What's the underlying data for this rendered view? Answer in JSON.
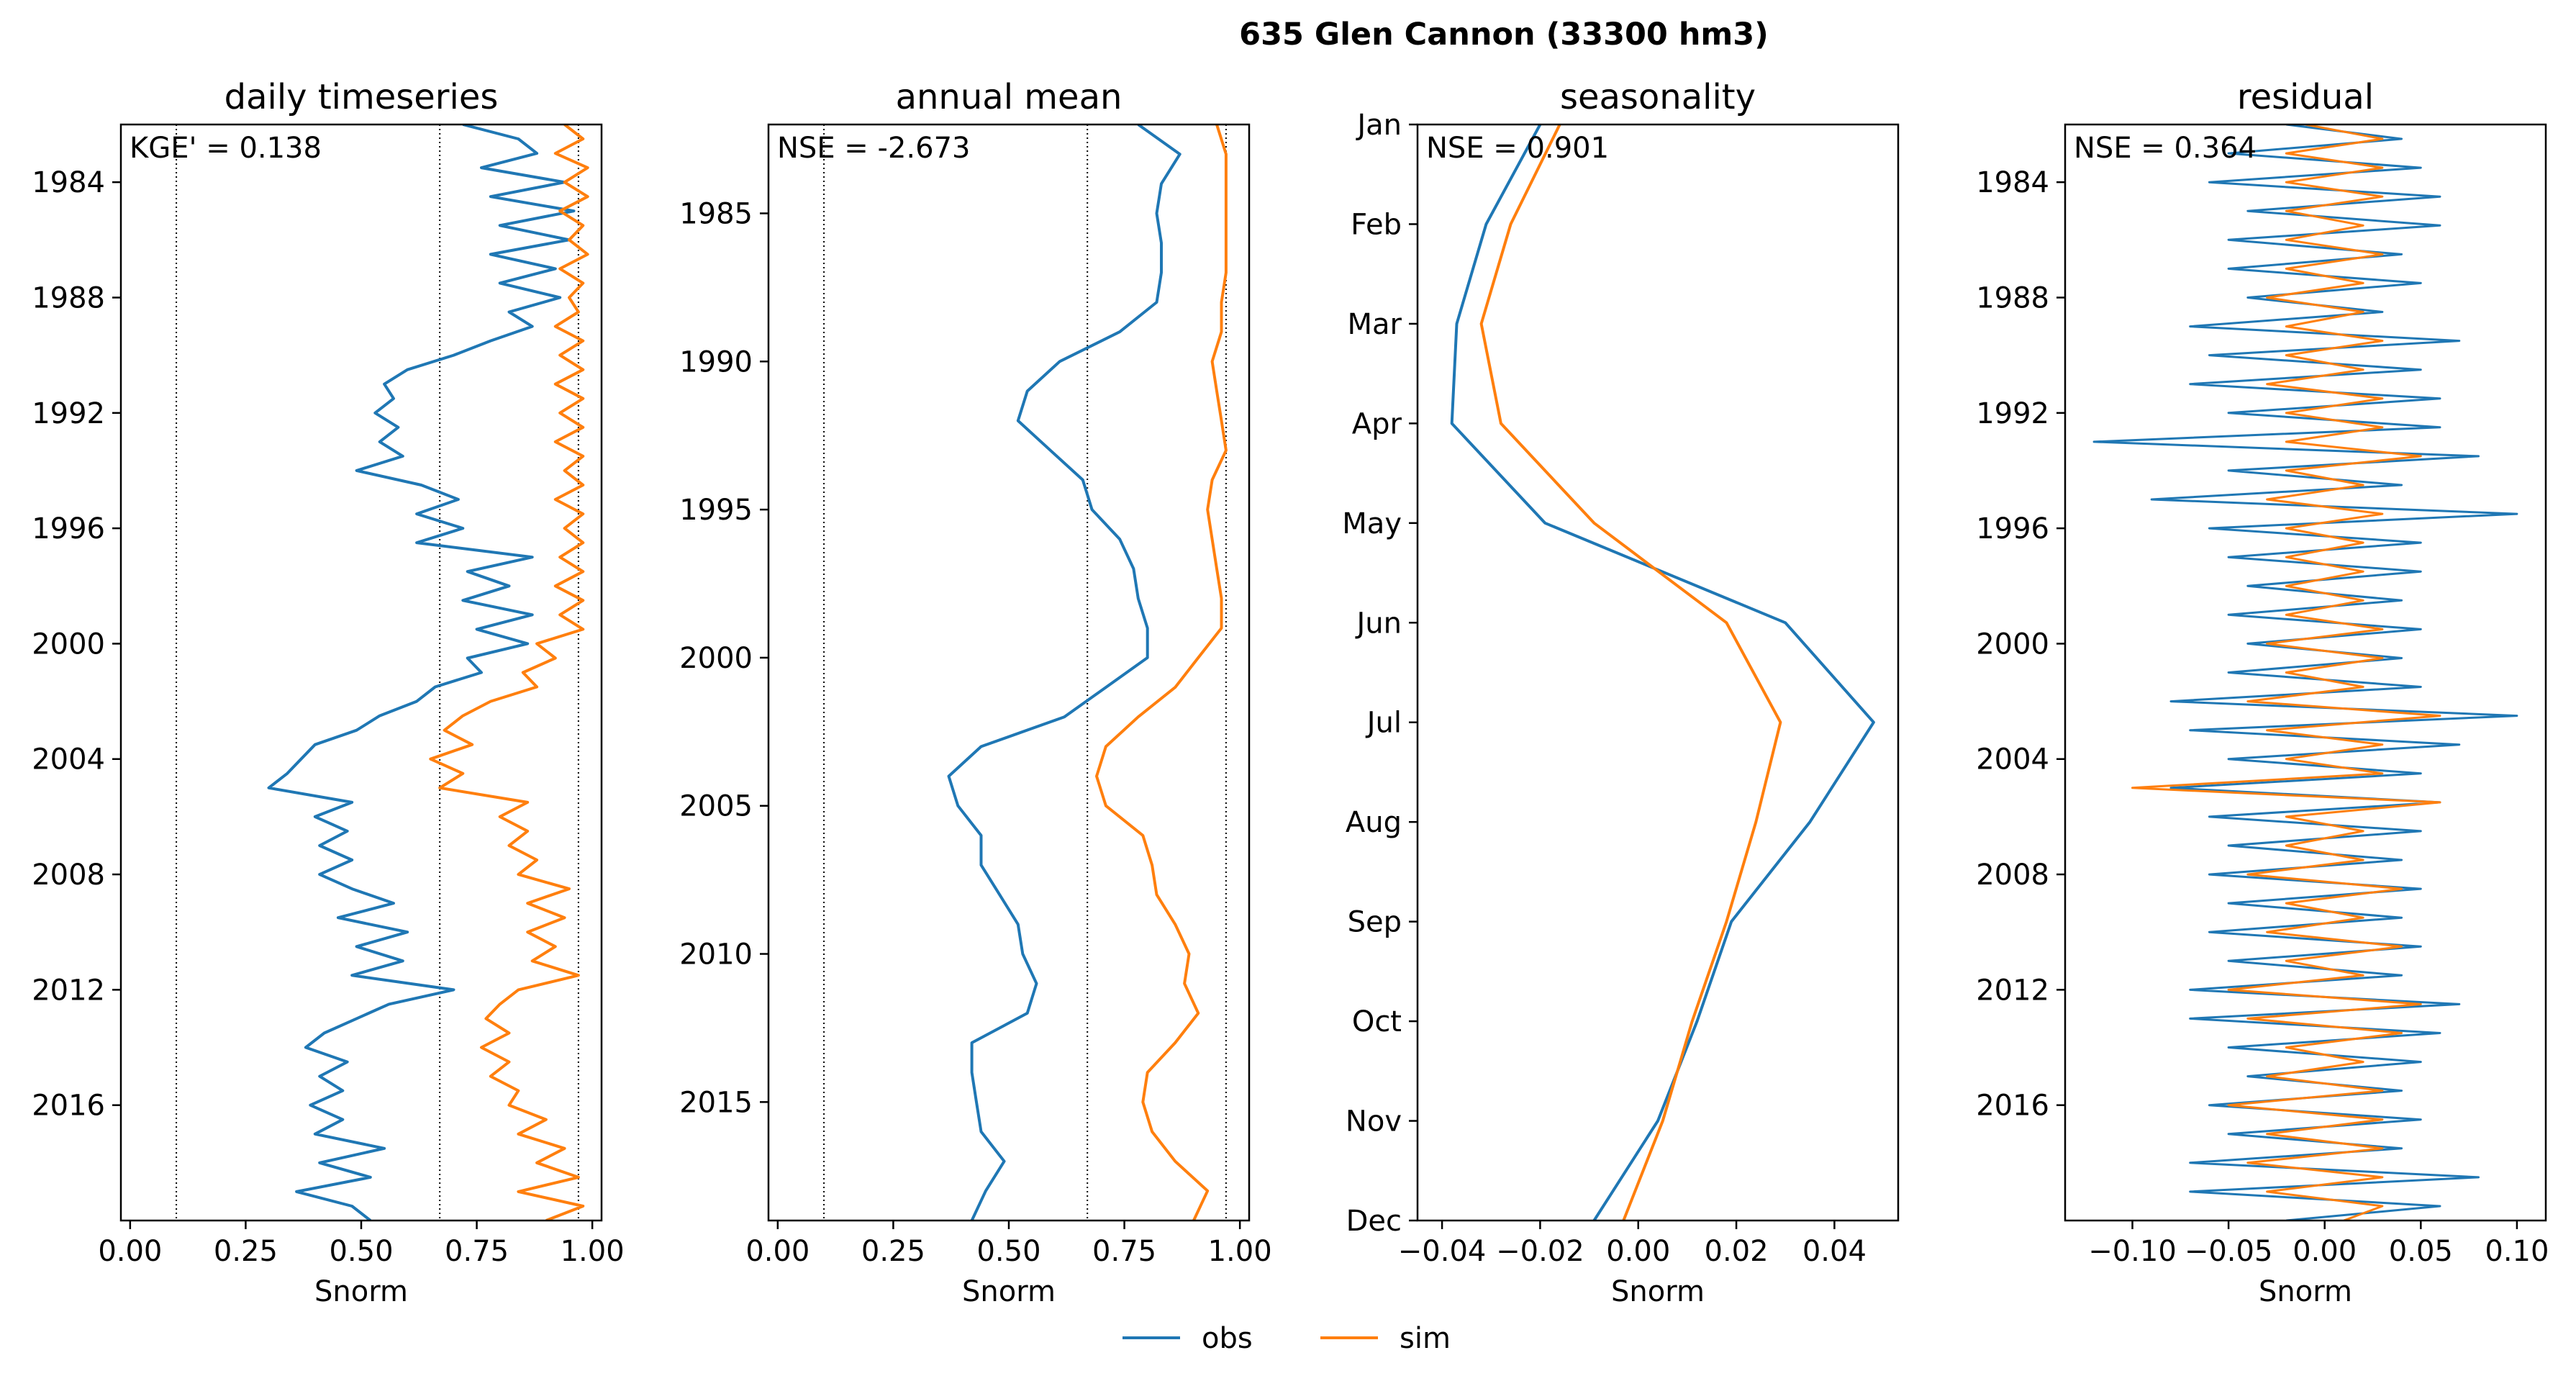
{
  "suptitle": "635  Glen Cannon (33300 hm3)",
  "colors": {
    "obs": "#1f77b4",
    "sim": "#ff7f0e",
    "axes": "#000000",
    "refline": "#000000"
  },
  "legend": {
    "placement": "bottom-center",
    "items": [
      {
        "key": "obs",
        "label": "obs"
      },
      {
        "key": "sim",
        "label": "sim"
      }
    ]
  },
  "chart_data": [
    {
      "type": "line",
      "title": "daily timeseries",
      "metric": "KGE' = 0.138",
      "xlabel": "Snorm",
      "xlim": [
        -0.02,
        1.02
      ],
      "ylim": [
        2020.0,
        1982.0
      ],
      "xticks": [
        0,
        0.25,
        0.5,
        0.75,
        1.0
      ],
      "xtick_labels": [
        "0.00",
        "0.25",
        "0.50",
        "0.75",
        "1.00"
      ],
      "yticks": [
        1984,
        1988,
        1992,
        1996,
        2000,
        2004,
        2008,
        2012,
        2016
      ],
      "ytick_labels": [
        "1984",
        "1988",
        "1992",
        "1996",
        "2000",
        "2004",
        "2008",
        "2012",
        "2016"
      ],
      "reference_lines_x": [
        0.1,
        0.67,
        0.97
      ],
      "series": [
        {
          "name": "obs",
          "y": [
            1982.0,
            1982.5,
            1983.0,
            1983.5,
            1984.0,
            1984.5,
            1985.0,
            1985.5,
            1986.0,
            1986.5,
            1987.0,
            1987.5,
            1988.0,
            1988.5,
            1989.0,
            1989.5,
            1990.0,
            1990.5,
            1991.0,
            1991.5,
            1992.0,
            1992.5,
            1993.0,
            1993.5,
            1994.0,
            1994.5,
            1995.0,
            1995.5,
            1996.0,
            1996.5,
            1997.0,
            1997.5,
            1998.0,
            1998.5,
            1999.0,
            1999.5,
            2000.0,
            2000.5,
            2001.0,
            2001.5,
            2002.0,
            2002.5,
            2003.0,
            2003.5,
            2004.0,
            2004.5,
            2005.0,
            2005.5,
            2006.0,
            2006.5,
            2007.0,
            2007.5,
            2008.0,
            2008.5,
            2009.0,
            2009.5,
            2010.0,
            2010.5,
            2011.0,
            2011.5,
            2012.0,
            2012.5,
            2013.0,
            2013.5,
            2014.0,
            2014.5,
            2015.0,
            2015.5,
            2016.0,
            2016.5,
            2017.0,
            2017.5,
            2018.0,
            2018.5,
            2019.0,
            2019.5,
            2020.0
          ],
          "x": [
            0.72,
            0.84,
            0.88,
            0.76,
            0.94,
            0.78,
            0.96,
            0.8,
            0.95,
            0.78,
            0.92,
            0.8,
            0.93,
            0.82,
            0.87,
            0.78,
            0.7,
            0.6,
            0.55,
            0.57,
            0.53,
            0.58,
            0.54,
            0.59,
            0.49,
            0.63,
            0.71,
            0.62,
            0.72,
            0.62,
            0.87,
            0.73,
            0.82,
            0.72,
            0.87,
            0.75,
            0.86,
            0.73,
            0.76,
            0.66,
            0.62,
            0.54,
            0.49,
            0.4,
            0.37,
            0.34,
            0.3,
            0.48,
            0.4,
            0.47,
            0.41,
            0.48,
            0.41,
            0.48,
            0.57,
            0.45,
            0.6,
            0.49,
            0.59,
            0.48,
            0.7,
            0.56,
            0.49,
            0.42,
            0.38,
            0.47,
            0.41,
            0.46,
            0.39,
            0.46,
            0.4,
            0.55,
            0.41,
            0.52,
            0.36,
            0.48,
            0.52
          ]
        },
        {
          "name": "sim",
          "y": [
            1982.0,
            1982.5,
            1983.0,
            1983.5,
            1984.0,
            1984.5,
            1985.0,
            1985.5,
            1986.0,
            1986.5,
            1987.0,
            1987.5,
            1988.0,
            1988.5,
            1989.0,
            1989.5,
            1990.0,
            1990.5,
            1991.0,
            1991.5,
            1992.0,
            1992.5,
            1993.0,
            1993.5,
            1994.0,
            1994.5,
            1995.0,
            1995.5,
            1996.0,
            1996.5,
            1997.0,
            1997.5,
            1998.0,
            1998.5,
            1999.0,
            1999.5,
            2000.0,
            2000.5,
            2001.0,
            2001.5,
            2002.0,
            2002.5,
            2003.0,
            2003.5,
            2004.0,
            2004.5,
            2005.0,
            2005.5,
            2006.0,
            2006.5,
            2007.0,
            2007.5,
            2008.0,
            2008.5,
            2009.0,
            2009.5,
            2010.0,
            2010.5,
            2011.0,
            2011.5,
            2012.0,
            2012.5,
            2013.0,
            2013.5,
            2014.0,
            2014.5,
            2015.0,
            2015.5,
            2016.0,
            2016.5,
            2017.0,
            2017.5,
            2018.0,
            2018.5,
            2019.0,
            2019.5,
            2020.0
          ],
          "x": [
            0.94,
            0.98,
            0.92,
            0.99,
            0.94,
            0.99,
            0.93,
            0.98,
            0.95,
            0.99,
            0.93,
            0.98,
            0.95,
            0.97,
            0.92,
            0.98,
            0.93,
            0.98,
            0.92,
            0.98,
            0.93,
            0.98,
            0.92,
            0.98,
            0.94,
            0.98,
            0.92,
            0.98,
            0.94,
            0.98,
            0.93,
            0.98,
            0.92,
            0.98,
            0.93,
            0.98,
            0.88,
            0.92,
            0.85,
            0.88,
            0.78,
            0.72,
            0.68,
            0.74,
            0.65,
            0.72,
            0.67,
            0.86,
            0.8,
            0.86,
            0.82,
            0.88,
            0.84,
            0.95,
            0.86,
            0.94,
            0.86,
            0.92,
            0.87,
            0.97,
            0.84,
            0.8,
            0.77,
            0.82,
            0.76,
            0.82,
            0.78,
            0.84,
            0.82,
            0.9,
            0.84,
            0.94,
            0.88,
            0.97,
            0.84,
            0.98,
            0.9
          ]
        }
      ]
    },
    {
      "type": "line",
      "title": "annual mean",
      "metric": "NSE = -2.673",
      "xlabel": "Snorm",
      "xlim": [
        -0.02,
        1.02
      ],
      "ylim": [
        2019.0,
        1982.0
      ],
      "xticks": [
        0,
        0.25,
        0.5,
        0.75,
        1.0
      ],
      "xtick_labels": [
        "0.00",
        "0.25",
        "0.50",
        "0.75",
        "1.00"
      ],
      "yticks": [
        1985,
        1990,
        1995,
        2000,
        2005,
        2010,
        2015
      ],
      "ytick_labels": [
        "1985",
        "1990",
        "1995",
        "2000",
        "2005",
        "2010",
        "2015"
      ],
      "reference_lines_x": [
        0.1,
        0.67,
        0.97
      ],
      "series": [
        {
          "name": "obs",
          "y": [
            1982,
            1983,
            1984,
            1985,
            1986,
            1987,
            1988,
            1989,
            1990,
            1991,
            1992,
            1993,
            1994,
            1995,
            1996,
            1997,
            1998,
            1999,
            2000,
            2001,
            2002,
            2003,
            2004,
            2005,
            2006,
            2007,
            2008,
            2009,
            2010,
            2011,
            2012,
            2013,
            2014,
            2015,
            2016,
            2017,
            2018,
            2019
          ],
          "x": [
            0.78,
            0.87,
            0.83,
            0.82,
            0.83,
            0.83,
            0.82,
            0.74,
            0.61,
            0.54,
            0.52,
            0.59,
            0.66,
            0.68,
            0.74,
            0.77,
            0.78,
            0.8,
            0.8,
            0.71,
            0.62,
            0.44,
            0.37,
            0.39,
            0.44,
            0.44,
            0.48,
            0.52,
            0.53,
            0.56,
            0.54,
            0.42,
            0.42,
            0.43,
            0.44,
            0.49,
            0.45,
            0.42
          ]
        },
        {
          "name": "sim",
          "y": [
            1982,
            1983,
            1984,
            1985,
            1986,
            1987,
            1988,
            1989,
            1990,
            1991,
            1992,
            1993,
            1994,
            1995,
            1996,
            1997,
            1998,
            1999,
            2000,
            2001,
            2002,
            2003,
            2004,
            2005,
            2006,
            2007,
            2008,
            2009,
            2010,
            2011,
            2012,
            2013,
            2014,
            2015,
            2016,
            2017,
            2018,
            2019
          ],
          "x": [
            0.95,
            0.97,
            0.97,
            0.97,
            0.97,
            0.97,
            0.96,
            0.96,
            0.94,
            0.95,
            0.96,
            0.97,
            0.94,
            0.93,
            0.94,
            0.95,
            0.96,
            0.96,
            0.91,
            0.86,
            0.78,
            0.71,
            0.69,
            0.71,
            0.79,
            0.81,
            0.82,
            0.86,
            0.89,
            0.88,
            0.91,
            0.86,
            0.8,
            0.79,
            0.81,
            0.86,
            0.93,
            0.9
          ]
        }
      ]
    },
    {
      "type": "line",
      "title": "seasonality",
      "metric": "NSE = 0.901",
      "xlabel": "Snorm",
      "xlim": [
        -0.045,
        0.053
      ],
      "ylim": [
        12,
        1
      ],
      "xticks": [
        -0.04,
        -0.02,
        0.0,
        0.02,
        0.04
      ],
      "xtick_labels": [
        "−0.04",
        "−0.02",
        "0.00",
        "0.02",
        "0.04"
      ],
      "yticks": [
        1,
        2,
        3,
        4,
        5,
        6,
        7,
        8,
        9,
        10,
        11,
        12
      ],
      "ytick_labels": [
        "Jan",
        "Feb",
        "Mar",
        "Apr",
        "May",
        "Jun",
        "Jul",
        "Aug",
        "Sep",
        "Oct",
        "Nov",
        "Dec"
      ],
      "reference_lines_x": [],
      "series": [
        {
          "name": "obs",
          "y": [
            0.95,
            1,
            2,
            3,
            4,
            5,
            6,
            7,
            8,
            9,
            10,
            11,
            12
          ],
          "x": [
            -0.019,
            -0.02,
            -0.031,
            -0.037,
            -0.038,
            -0.019,
            0.03,
            0.048,
            0.035,
            0.019,
            0.012,
            0.004,
            -0.009
          ]
        },
        {
          "name": "sim",
          "y": [
            0.95,
            1,
            2,
            3,
            4,
            5,
            6,
            7,
            8,
            9,
            10,
            11,
            12
          ],
          "x": [
            -0.015,
            -0.016,
            -0.026,
            -0.032,
            -0.028,
            -0.009,
            0.018,
            0.029,
            0.024,
            0.018,
            0.011,
            0.005,
            -0.003
          ]
        }
      ]
    },
    {
      "type": "line",
      "title": "residual",
      "metric": "NSE = 0.364",
      "xlabel": "Snorm",
      "xlim": [
        -0.135,
        0.115
      ],
      "ylim": [
        2020.0,
        1982.0
      ],
      "xticks": [
        -0.1,
        -0.05,
        0.0,
        0.05,
        0.1
      ],
      "xtick_labels": [
        "−0.10",
        "−0.05",
        "0.00",
        "0.05",
        "0.10"
      ],
      "yticks": [
        1984,
        1988,
        1992,
        1996,
        2000,
        2004,
        2008,
        2012,
        2016
      ],
      "ytick_labels": [
        "1984",
        "1988",
        "1992",
        "1996",
        "2000",
        "2004",
        "2008",
        "2012",
        "2016"
      ],
      "reference_lines_x": [],
      "series": [
        {
          "name": "obs",
          "y": [
            1982.0,
            1982.5,
            1983.0,
            1983.5,
            1984.0,
            1984.5,
            1985.0,
            1985.5,
            1986.0,
            1986.5,
            1987.0,
            1987.5,
            1988.0,
            1988.5,
            1989.0,
            1989.5,
            1990.0,
            1990.5,
            1991.0,
            1991.5,
            1992.0,
            1992.5,
            1993.0,
            1993.5,
            1994.0,
            1994.5,
            1995.0,
            1995.5,
            1996.0,
            1996.5,
            1997.0,
            1997.5,
            1998.0,
            1998.5,
            1999.0,
            1999.5,
            2000.0,
            2000.5,
            2001.0,
            2001.5,
            2002.0,
            2002.5,
            2003.0,
            2003.5,
            2004.0,
            2004.5,
            2005.0,
            2005.5,
            2006.0,
            2006.5,
            2007.0,
            2007.5,
            2008.0,
            2008.5,
            2009.0,
            2009.5,
            2010.0,
            2010.5,
            2011.0,
            2011.5,
            2012.0,
            2012.5,
            2013.0,
            2013.5,
            2014.0,
            2014.5,
            2015.0,
            2015.5,
            2016.0,
            2016.5,
            2017.0,
            2017.5,
            2018.0,
            2018.5,
            2019.0,
            2019.5,
            2020.0
          ],
          "x": [
            -0.02,
            0.04,
            -0.05,
            0.05,
            -0.06,
            0.06,
            -0.04,
            0.06,
            -0.05,
            0.04,
            -0.05,
            0.05,
            -0.04,
            0.03,
            -0.07,
            0.07,
            -0.06,
            0.05,
            -0.07,
            0.06,
            -0.05,
            0.06,
            -0.12,
            0.08,
            -0.05,
            0.04,
            -0.09,
            0.1,
            -0.06,
            0.05,
            -0.05,
            0.05,
            -0.04,
            0.04,
            -0.05,
            0.05,
            -0.04,
            0.04,
            -0.05,
            0.05,
            -0.08,
            0.1,
            -0.07,
            0.07,
            -0.05,
            0.05,
            -0.08,
            0.06,
            -0.06,
            0.05,
            -0.05,
            0.04,
            -0.06,
            0.05,
            -0.05,
            0.04,
            -0.06,
            0.05,
            -0.05,
            0.04,
            -0.07,
            0.07,
            -0.07,
            0.06,
            -0.05,
            0.05,
            -0.04,
            0.04,
            -0.06,
            0.05,
            -0.05,
            0.04,
            -0.07,
            0.08,
            -0.07,
            0.06,
            -0.02
          ]
        },
        {
          "name": "sim",
          "y": [
            1982.0,
            1982.5,
            1983.0,
            1983.5,
            1984.0,
            1984.5,
            1985.0,
            1985.5,
            1986.0,
            1986.5,
            1987.0,
            1987.5,
            1988.0,
            1988.5,
            1989.0,
            1989.5,
            1990.0,
            1990.5,
            1991.0,
            1991.5,
            1992.0,
            1992.5,
            1993.0,
            1993.5,
            1994.0,
            1994.5,
            1995.0,
            1995.5,
            1996.0,
            1996.5,
            1997.0,
            1997.5,
            1998.0,
            1998.5,
            1999.0,
            1999.5,
            2000.0,
            2000.5,
            2001.0,
            2001.5,
            2002.0,
            2002.5,
            2003.0,
            2003.5,
            2004.0,
            2004.5,
            2005.0,
            2005.5,
            2006.0,
            2006.5,
            2007.0,
            2007.5,
            2008.0,
            2008.5,
            2009.0,
            2009.5,
            2010.0,
            2010.5,
            2011.0,
            2011.5,
            2012.0,
            2012.5,
            2013.0,
            2013.5,
            2014.0,
            2014.5,
            2015.0,
            2015.5,
            2016.0,
            2016.5,
            2017.0,
            2017.5,
            2018.0,
            2018.5,
            2019.0,
            2019.5,
            2020.0
          ],
          "x": [
            -0.01,
            0.03,
            -0.02,
            0.03,
            -0.02,
            0.03,
            -0.02,
            0.02,
            -0.02,
            0.03,
            -0.02,
            0.02,
            -0.03,
            0.02,
            -0.02,
            0.03,
            -0.02,
            0.02,
            -0.03,
            0.03,
            -0.02,
            0.03,
            -0.02,
            0.05,
            -0.02,
            0.02,
            -0.03,
            0.03,
            -0.02,
            0.02,
            -0.02,
            0.02,
            -0.02,
            0.02,
            -0.02,
            0.03,
            -0.03,
            0.03,
            -0.02,
            0.02,
            -0.04,
            0.06,
            -0.03,
            0.03,
            -0.02,
            0.03,
            -0.1,
            0.06,
            -0.02,
            0.02,
            -0.02,
            0.02,
            -0.04,
            0.04,
            -0.02,
            0.02,
            -0.03,
            0.04,
            -0.02,
            0.02,
            -0.05,
            0.05,
            -0.04,
            0.04,
            -0.02,
            0.02,
            -0.03,
            0.03,
            -0.05,
            0.03,
            -0.03,
            0.03,
            -0.04,
            0.03,
            -0.03,
            0.03,
            0.01
          ]
        }
      ]
    }
  ]
}
